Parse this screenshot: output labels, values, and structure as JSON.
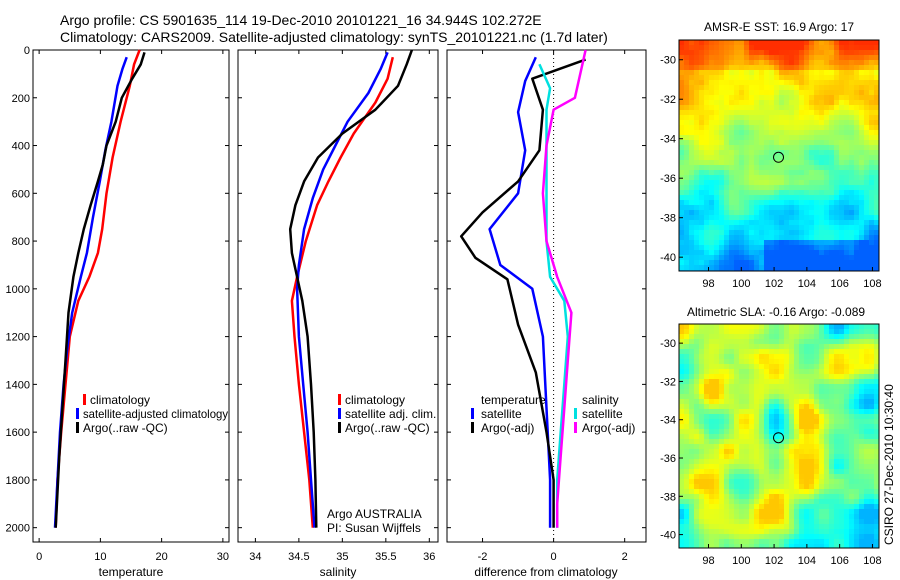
{
  "header": {
    "line1": "Argo profile: CS 5901635_114 19-Dec-2010 20101221_16 34.944S 102.272E",
    "line2": "Climatology: CARS2009. Satellite-adjusted climatology: synTS_20101221.nc (1.7d later)"
  },
  "side_label": "CSIRO 27-Dec-2010 10:30:40",
  "chart_data": [
    {
      "id": "temperature",
      "type": "line",
      "xlabel": "temperature",
      "xlim": [
        -1,
        31
      ],
      "ylim": [
        0,
        2060
      ],
      "xticks": [
        0,
        10,
        20,
        30
      ],
      "yticks": [
        0,
        200,
        400,
        600,
        800,
        1000,
        1200,
        1400,
        1600,
        1800,
        2000
      ],
      "y_reversed": true,
      "legend": [
        "climatology",
        "satellite-adjusted climatology",
        "Argo(..raw -QC)"
      ],
      "series": [
        {
          "name": "climatology",
          "color": "#ff0000",
          "points": [
            [
              16.4,
              0
            ],
            [
              15.5,
              60
            ],
            [
              14.8,
              150
            ],
            [
              13.3,
              300
            ],
            [
              12.0,
              450
            ],
            [
              11.0,
              600
            ],
            [
              10.3,
              750
            ],
            [
              9.6,
              850
            ],
            [
              8.2,
              950
            ],
            [
              6.4,
              1050
            ],
            [
              5.0,
              1200
            ],
            [
              4.3,
              1400
            ],
            [
              3.6,
              1600
            ],
            [
              3.0,
              1800
            ],
            [
              2.7,
              2000
            ]
          ]
        },
        {
          "name": "satellite-adjusted climatology",
          "color": "#0000ff",
          "points": [
            [
              14.3,
              30
            ],
            [
              13.6,
              80
            ],
            [
              12.8,
              150
            ],
            [
              11.8,
              300
            ],
            [
              10.8,
              420
            ],
            [
              9.9,
              550
            ],
            [
              8.8,
              700
            ],
            [
              7.8,
              850
            ],
            [
              6.8,
              950
            ],
            [
              5.4,
              1100
            ],
            [
              4.6,
              1250
            ],
            [
              4.0,
              1400
            ],
            [
              3.4,
              1600
            ],
            [
              3.0,
              1800
            ],
            [
              2.6,
              2000
            ]
          ]
        },
        {
          "name": "Argo(..raw -QC)",
          "color": "#000000",
          "points": [
            [
              17.2,
              10
            ],
            [
              16.6,
              60
            ],
            [
              15.2,
              120
            ],
            [
              13.5,
              200
            ],
            [
              12.5,
              300
            ],
            [
              11.0,
              400
            ],
            [
              10.4,
              480
            ],
            [
              9.6,
              550
            ],
            [
              8.4,
              650
            ],
            [
              7.3,
              750
            ],
            [
              6.4,
              850
            ],
            [
              5.6,
              950
            ],
            [
              4.8,
              1100
            ],
            [
              4.3,
              1300
            ],
            [
              3.8,
              1500
            ],
            [
              3.3,
              1700
            ],
            [
              2.9,
              1900
            ],
            [
              2.7,
              2000
            ]
          ]
        }
      ]
    },
    {
      "id": "salinity",
      "type": "line",
      "xlabel": "salinity",
      "xlim": [
        33.8,
        36.1
      ],
      "ylim": [
        0,
        2060
      ],
      "xticks": [
        34,
        34.5,
        35,
        35.5,
        36
      ],
      "y_reversed": true,
      "legend": [
        "climatology",
        "satellite adj. clim.",
        "Argo(..raw -QC)"
      ],
      "annotation": [
        "Argo AUSTRALIA",
        "PI: Susan Wijffels"
      ],
      "series": [
        {
          "name": "climatology",
          "color": "#ff0000",
          "points": [
            [
              35.58,
              30
            ],
            [
              35.52,
              120
            ],
            [
              35.38,
              220
            ],
            [
              35.13,
              350
            ],
            [
              34.98,
              450
            ],
            [
              34.84,
              550
            ],
            [
              34.71,
              650
            ],
            [
              34.58,
              800
            ],
            [
              34.48,
              950
            ],
            [
              34.42,
              1050
            ],
            [
              34.45,
              1200
            ],
            [
              34.5,
              1400
            ],
            [
              34.56,
              1600
            ],
            [
              34.62,
              1800
            ],
            [
              34.66,
              2000
            ]
          ]
        },
        {
          "name": "satellite adj. clim.",
          "color": "#0000ff",
          "points": [
            [
              35.52,
              10
            ],
            [
              35.44,
              80
            ],
            [
              35.3,
              180
            ],
            [
              35.06,
              300
            ],
            [
              34.92,
              400
            ],
            [
              34.78,
              500
            ],
            [
              34.66,
              620
            ],
            [
              34.56,
              750
            ],
            [
              34.5,
              900
            ],
            [
              34.48,
              1000
            ],
            [
              34.5,
              1200
            ],
            [
              34.55,
              1400
            ],
            [
              34.6,
              1600
            ],
            [
              34.64,
              1800
            ],
            [
              34.68,
              2000
            ]
          ]
        },
        {
          "name": "Argo(..raw -QC)",
          "color": "#000000",
          "points": [
            [
              35.8,
              0
            ],
            [
              35.74,
              60
            ],
            [
              35.64,
              150
            ],
            [
              35.38,
              250
            ],
            [
              35.0,
              350
            ],
            [
              34.72,
              450
            ],
            [
              34.56,
              550
            ],
            [
              34.46,
              650
            ],
            [
              34.4,
              750
            ],
            [
              34.42,
              850
            ],
            [
              34.48,
              950
            ],
            [
              34.54,
              1050
            ],
            [
              34.6,
              1200
            ],
            [
              34.64,
              1400
            ],
            [
              34.67,
              1600
            ],
            [
              34.69,
              1800
            ],
            [
              34.7,
              2000
            ]
          ]
        }
      ]
    },
    {
      "id": "difference",
      "type": "line",
      "xlabel": "difference from climatology",
      "xlim": [
        -3,
        2.6
      ],
      "ylim": [
        0,
        2060
      ],
      "xticks": [
        -2,
        0,
        2
      ],
      "y_reversed": true,
      "reference_x": 0,
      "legend_headings": [
        "temperature",
        "salinity"
      ],
      "legend_left": [
        "satellite",
        "Argo(-adj)"
      ],
      "legend_right": [
        "satellite",
        "Argo(-adj)"
      ],
      "series": [
        {
          "name": "temperature satellite",
          "color": "#0000ff",
          "points": [
            [
              -0.5,
              30
            ],
            [
              -0.8,
              130
            ],
            [
              -1.0,
              260
            ],
            [
              -0.8,
              420
            ],
            [
              -1.0,
              600
            ],
            [
              -1.8,
              750
            ],
            [
              -1.5,
              900
            ],
            [
              -0.6,
              1000
            ],
            [
              -0.3,
              1200
            ],
            [
              -0.2,
              1500
            ],
            [
              -0.1,
              1800
            ],
            [
              -0.1,
              2000
            ]
          ]
        },
        {
          "name": "temperature Argo(-adj)",
          "color": "#000000",
          "points": [
            [
              0.9,
              40
            ],
            [
              -0.6,
              120
            ],
            [
              -0.3,
              250
            ],
            [
              -0.4,
              420
            ],
            [
              -1.0,
              550
            ],
            [
              -2.0,
              680
            ],
            [
              -2.6,
              780
            ],
            [
              -2.2,
              870
            ],
            [
              -1.3,
              960
            ],
            [
              -1.0,
              1150
            ],
            [
              -0.5,
              1350
            ],
            [
              -0.2,
              1600
            ],
            [
              0.0,
              1800
            ],
            [
              0.0,
              2000
            ]
          ]
        },
        {
          "name": "salinity satellite",
          "color": "#00e0e0",
          "points": [
            [
              -0.4,
              60
            ],
            [
              -0.1,
              160
            ],
            [
              -0.2,
              250
            ],
            [
              -0.2,
              400
            ],
            [
              -0.2,
              600
            ],
            [
              -0.2,
              800
            ],
            [
              -0.1,
              950
            ],
            [
              0.3,
              1050
            ],
            [
              0.4,
              1200
            ],
            [
              0.3,
              1400
            ],
            [
              0.2,
              1600
            ],
            [
              0.1,
              1800
            ],
            [
              0.1,
              2000
            ]
          ]
        },
        {
          "name": "salinity Argo(-adj)",
          "color": "#ff00ff",
          "points": [
            [
              0.9,
              0
            ],
            [
              0.6,
              200
            ],
            [
              0.0,
              250
            ],
            [
              -0.2,
              400
            ],
            [
              -0.3,
              600
            ],
            [
              -0.2,
              800
            ],
            [
              0.1,
              950
            ],
            [
              0.5,
              1100
            ],
            [
              0.4,
              1300
            ],
            [
              0.3,
              1500
            ],
            [
              0.2,
              1700
            ],
            [
              0.1,
              1900
            ],
            [
              0.1,
              2000
            ]
          ]
        }
      ]
    },
    {
      "id": "sst_map",
      "type": "heatmap",
      "title": "AMSR-E SST: 16.9 Argo: 17",
      "xticks": [
        98,
        100,
        102,
        104,
        106,
        108
      ],
      "yticks": [
        -30,
        -32,
        -34,
        -36,
        -38,
        -40
      ],
      "xlim": [
        96.2,
        108.4
      ],
      "ylim": [
        -40.7,
        -29.0
      ],
      "marker": [
        102.27,
        -34.94
      ]
    },
    {
      "id": "sla_map",
      "type": "heatmap",
      "title": "Altimetric SLA: -0.16 Argo: -0.089",
      "xticks": [
        98,
        100,
        102,
        104,
        106,
        108
      ],
      "yticks": [
        -30,
        -32,
        -34,
        -36,
        -38,
        -40
      ],
      "xlim": [
        96.2,
        108.4
      ],
      "ylim": [
        -40.7,
        -29.0
      ],
      "marker": [
        102.27,
        -34.94
      ]
    }
  ]
}
